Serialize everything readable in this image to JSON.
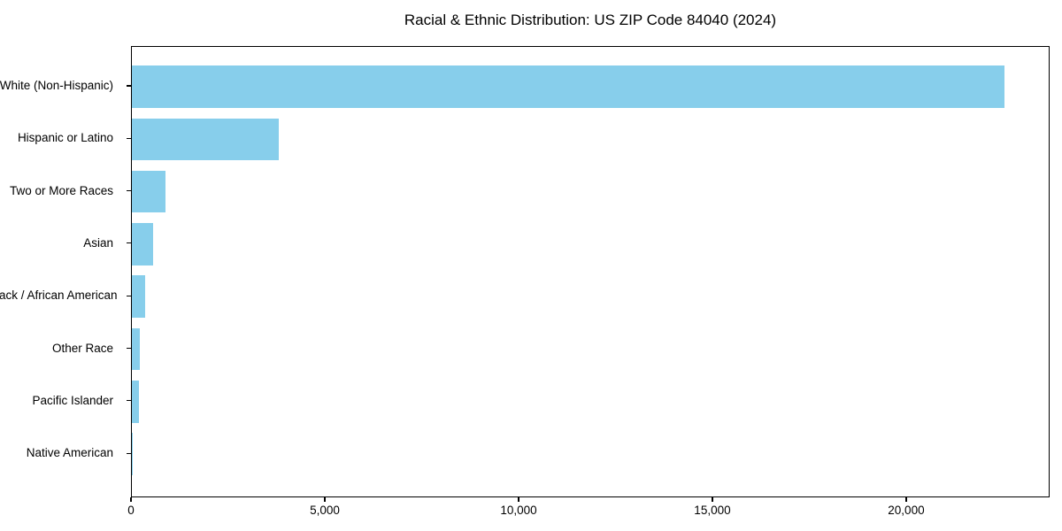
{
  "chart_data": {
    "type": "bar",
    "orientation": "horizontal",
    "title": "Racial & Ethnic Distribution: US ZIP Code 84040 (2024)",
    "categories": [
      "White (Non-Hispanic)",
      "Hispanic or Latino",
      "Two or More Races",
      "Asian",
      "Black / African American",
      "Other Race",
      "Pacific Islander",
      "Native American"
    ],
    "values": [
      22560,
      3795,
      875,
      550,
      335,
      215,
      185,
      30
    ],
    "bar_color": "#87CEEB",
    "xlabel": "",
    "ylabel": "",
    "xlim": [
      0,
      23700
    ],
    "x_ticks": [
      0,
      5000,
      10000,
      15000,
      20000
    ],
    "x_tick_labels": [
      "0",
      "5,000",
      "10,000",
      "15,000",
      "20,000"
    ],
    "grid": false,
    "legend": "none"
  }
}
